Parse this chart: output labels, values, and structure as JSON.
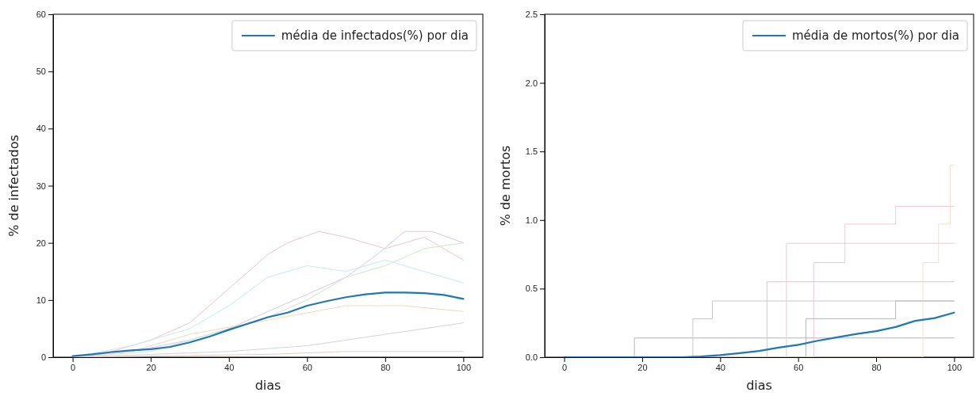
{
  "chart_data": [
    {
      "type": "line",
      "xlabel": "dias",
      "ylabel": "% de infectados",
      "xlim": [
        -5,
        105
      ],
      "ylim": [
        0,
        60
      ],
      "xticks": [
        0,
        20,
        40,
        60,
        80,
        100
      ],
      "yticks": [
        0,
        10,
        20,
        30,
        40,
        50,
        60
      ],
      "legend": "top right",
      "grid": false,
      "series": [
        {
          "color": "#ecc6cc",
          "x": [
            0,
            10,
            20,
            30,
            40,
            50,
            55,
            63,
            70,
            80,
            90,
            100
          ],
          "values": [
            0,
            1,
            3,
            6,
            12,
            18,
            20,
            22,
            21,
            19,
            21,
            17
          ]
        },
        {
          "color": "#d6c8ec",
          "x": [
            0,
            15,
            30,
            40,
            50,
            60,
            70,
            78,
            85,
            92,
            100
          ],
          "values": [
            0,
            1,
            3,
            5,
            8,
            11,
            14,
            18,
            22,
            22,
            20
          ]
        },
        {
          "color": "#cfe6c8",
          "x": [
            0,
            20,
            40,
            50,
            60,
            70,
            80,
            90,
            100
          ],
          "values": [
            0,
            1,
            5,
            7,
            10,
            14,
            16,
            19,
            20
          ]
        },
        {
          "color": "#c8e8f0",
          "x": [
            0,
            15,
            30,
            40,
            50,
            60,
            70,
            80,
            90,
            100
          ],
          "values": [
            0,
            2,
            5,
            9,
            14,
            16,
            15,
            17,
            15,
            13
          ]
        },
        {
          "color": "#f2d8bc",
          "x": [
            0,
            15,
            30,
            50,
            70,
            85,
            100
          ],
          "values": [
            0,
            1,
            4,
            6.5,
            9,
            9,
            8
          ]
        },
        {
          "color": "#d4d4d4",
          "x": [
            0,
            20,
            40,
            60,
            80,
            100
          ],
          "values": [
            0,
            0.5,
            1,
            2,
            4,
            6
          ]
        },
        {
          "color": "#e6ccc8",
          "x": [
            0,
            30,
            50,
            70,
            100
          ],
          "values": [
            0,
            0.3,
            0.5,
            1,
            1
          ]
        },
        {
          "name": "média de infectados(%) por dia",
          "color": "#1f77b4",
          "x": [
            0,
            5,
            10,
            15,
            20,
            25,
            30,
            35,
            40,
            45,
            50,
            55,
            60,
            65,
            70,
            75,
            80,
            85,
            90,
            95,
            100
          ],
          "values": [
            0.2,
            0.5,
            0.9,
            1.2,
            1.4,
            1.8,
            2.6,
            3.6,
            4.8,
            5.9,
            7.0,
            7.8,
            9.0,
            9.8,
            10.5,
            11.0,
            11.3,
            11.3,
            11.2,
            10.9,
            10.2
          ]
        }
      ]
    },
    {
      "type": "line",
      "xlabel": "dias",
      "ylabel": "% de mortos",
      "xlim": [
        -5,
        105
      ],
      "ylim": [
        0,
        2.5
      ],
      "xticks": [
        0,
        20,
        40,
        60,
        80,
        100
      ],
      "yticks": [
        {
          "value": 0,
          "label": "0.0"
        },
        0.5,
        {
          "value": 1,
          "label": "1.0"
        },
        1.5,
        {
          "value": 2,
          "label": "2.0"
        },
        2.5
      ],
      "legend": "top right",
      "grid": false,
      "series": [
        {
          "type": "step",
          "color": "#b4b4b4",
          "x": [
            0,
            18,
            100
          ],
          "values": [
            0,
            0.14,
            0.14
          ]
        },
        {
          "type": "step",
          "color": "#c8c8c8",
          "x": [
            0,
            33,
            38,
            100
          ],
          "values": [
            0,
            0.28,
            0.41,
            0.41
          ]
        },
        {
          "type": "step",
          "color": "#ecc8d0",
          "x": [
            0,
            57,
            100
          ],
          "values": [
            0,
            0.83,
            0.83
          ]
        },
        {
          "type": "step",
          "color": "#e0c0d0",
          "x": [
            0,
            52,
            100
          ],
          "values": [
            0,
            0.55,
            0.55
          ]
        },
        {
          "type": "step",
          "color": "#f0c8d4",
          "x": [
            0,
            64,
            72,
            85,
            100
          ],
          "values": [
            0,
            0.69,
            0.97,
            1.1,
            1.1
          ]
        },
        {
          "type": "step",
          "color": "#f4e0cc",
          "x": [
            0,
            92,
            96,
            99,
            100
          ],
          "values": [
            0,
            0.69,
            0.97,
            1.4,
            1.4
          ]
        },
        {
          "type": "step",
          "color": "#b8b8b8",
          "x": [
            0,
            62,
            85,
            100
          ],
          "values": [
            0,
            0.28,
            0.41,
            0.41
          ]
        },
        {
          "name": "média de mortos(%) por dia",
          "color": "#1f77b4",
          "x": [
            0,
            5,
            10,
            15,
            20,
            25,
            30,
            35,
            40,
            45,
            50,
            55,
            60,
            65,
            70,
            75,
            80,
            85,
            90,
            95,
            100
          ],
          "values": [
            0,
            0,
            0,
            0,
            0,
            0,
            0,
            0.005,
            0.015,
            0.03,
            0.045,
            0.07,
            0.09,
            0.12,
            0.145,
            0.17,
            0.19,
            0.22,
            0.265,
            0.285,
            0.325
          ]
        }
      ]
    }
  ]
}
